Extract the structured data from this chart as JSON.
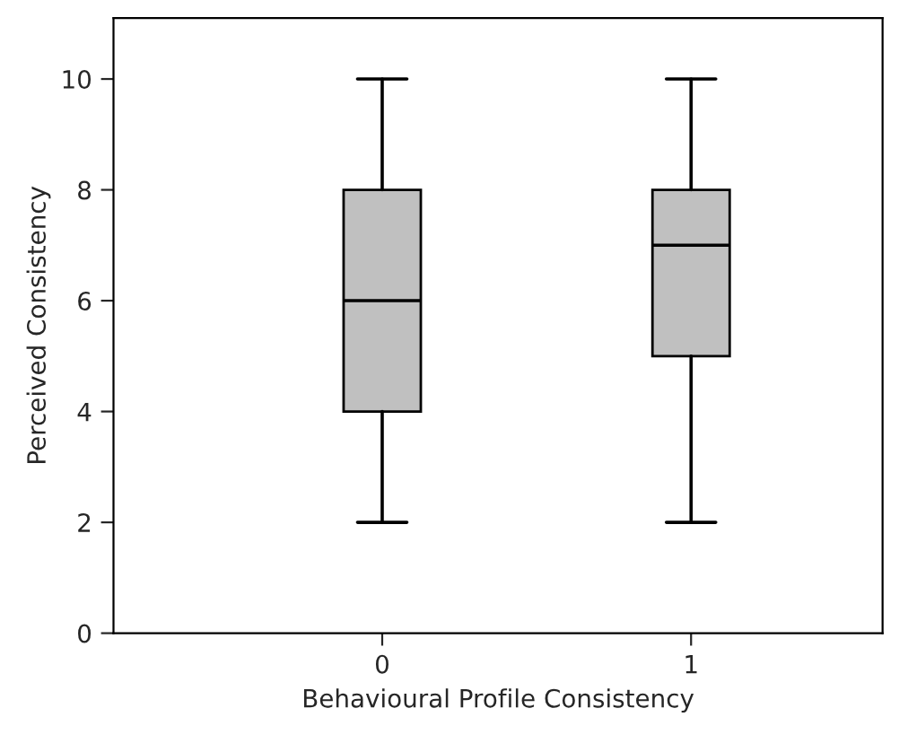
{
  "chart_data": {
    "type": "box",
    "xlabel": "Behavioural Profile Consistency",
    "ylabel": "Perceived Consistency",
    "categories": [
      "0",
      "1"
    ],
    "boxes": [
      {
        "low": 2,
        "q1": 4,
        "median": 6,
        "q3": 8,
        "high": 10
      },
      {
        "low": 2,
        "q1": 5,
        "median": 7,
        "q3": 8,
        "high": 10
      }
    ],
    "color": "#c0c0c0",
    "ylim": [
      0,
      11.1
    ],
    "yticks": [
      0,
      2,
      4,
      6,
      8,
      10
    ],
    "grid": false,
    "legend": false
  }
}
